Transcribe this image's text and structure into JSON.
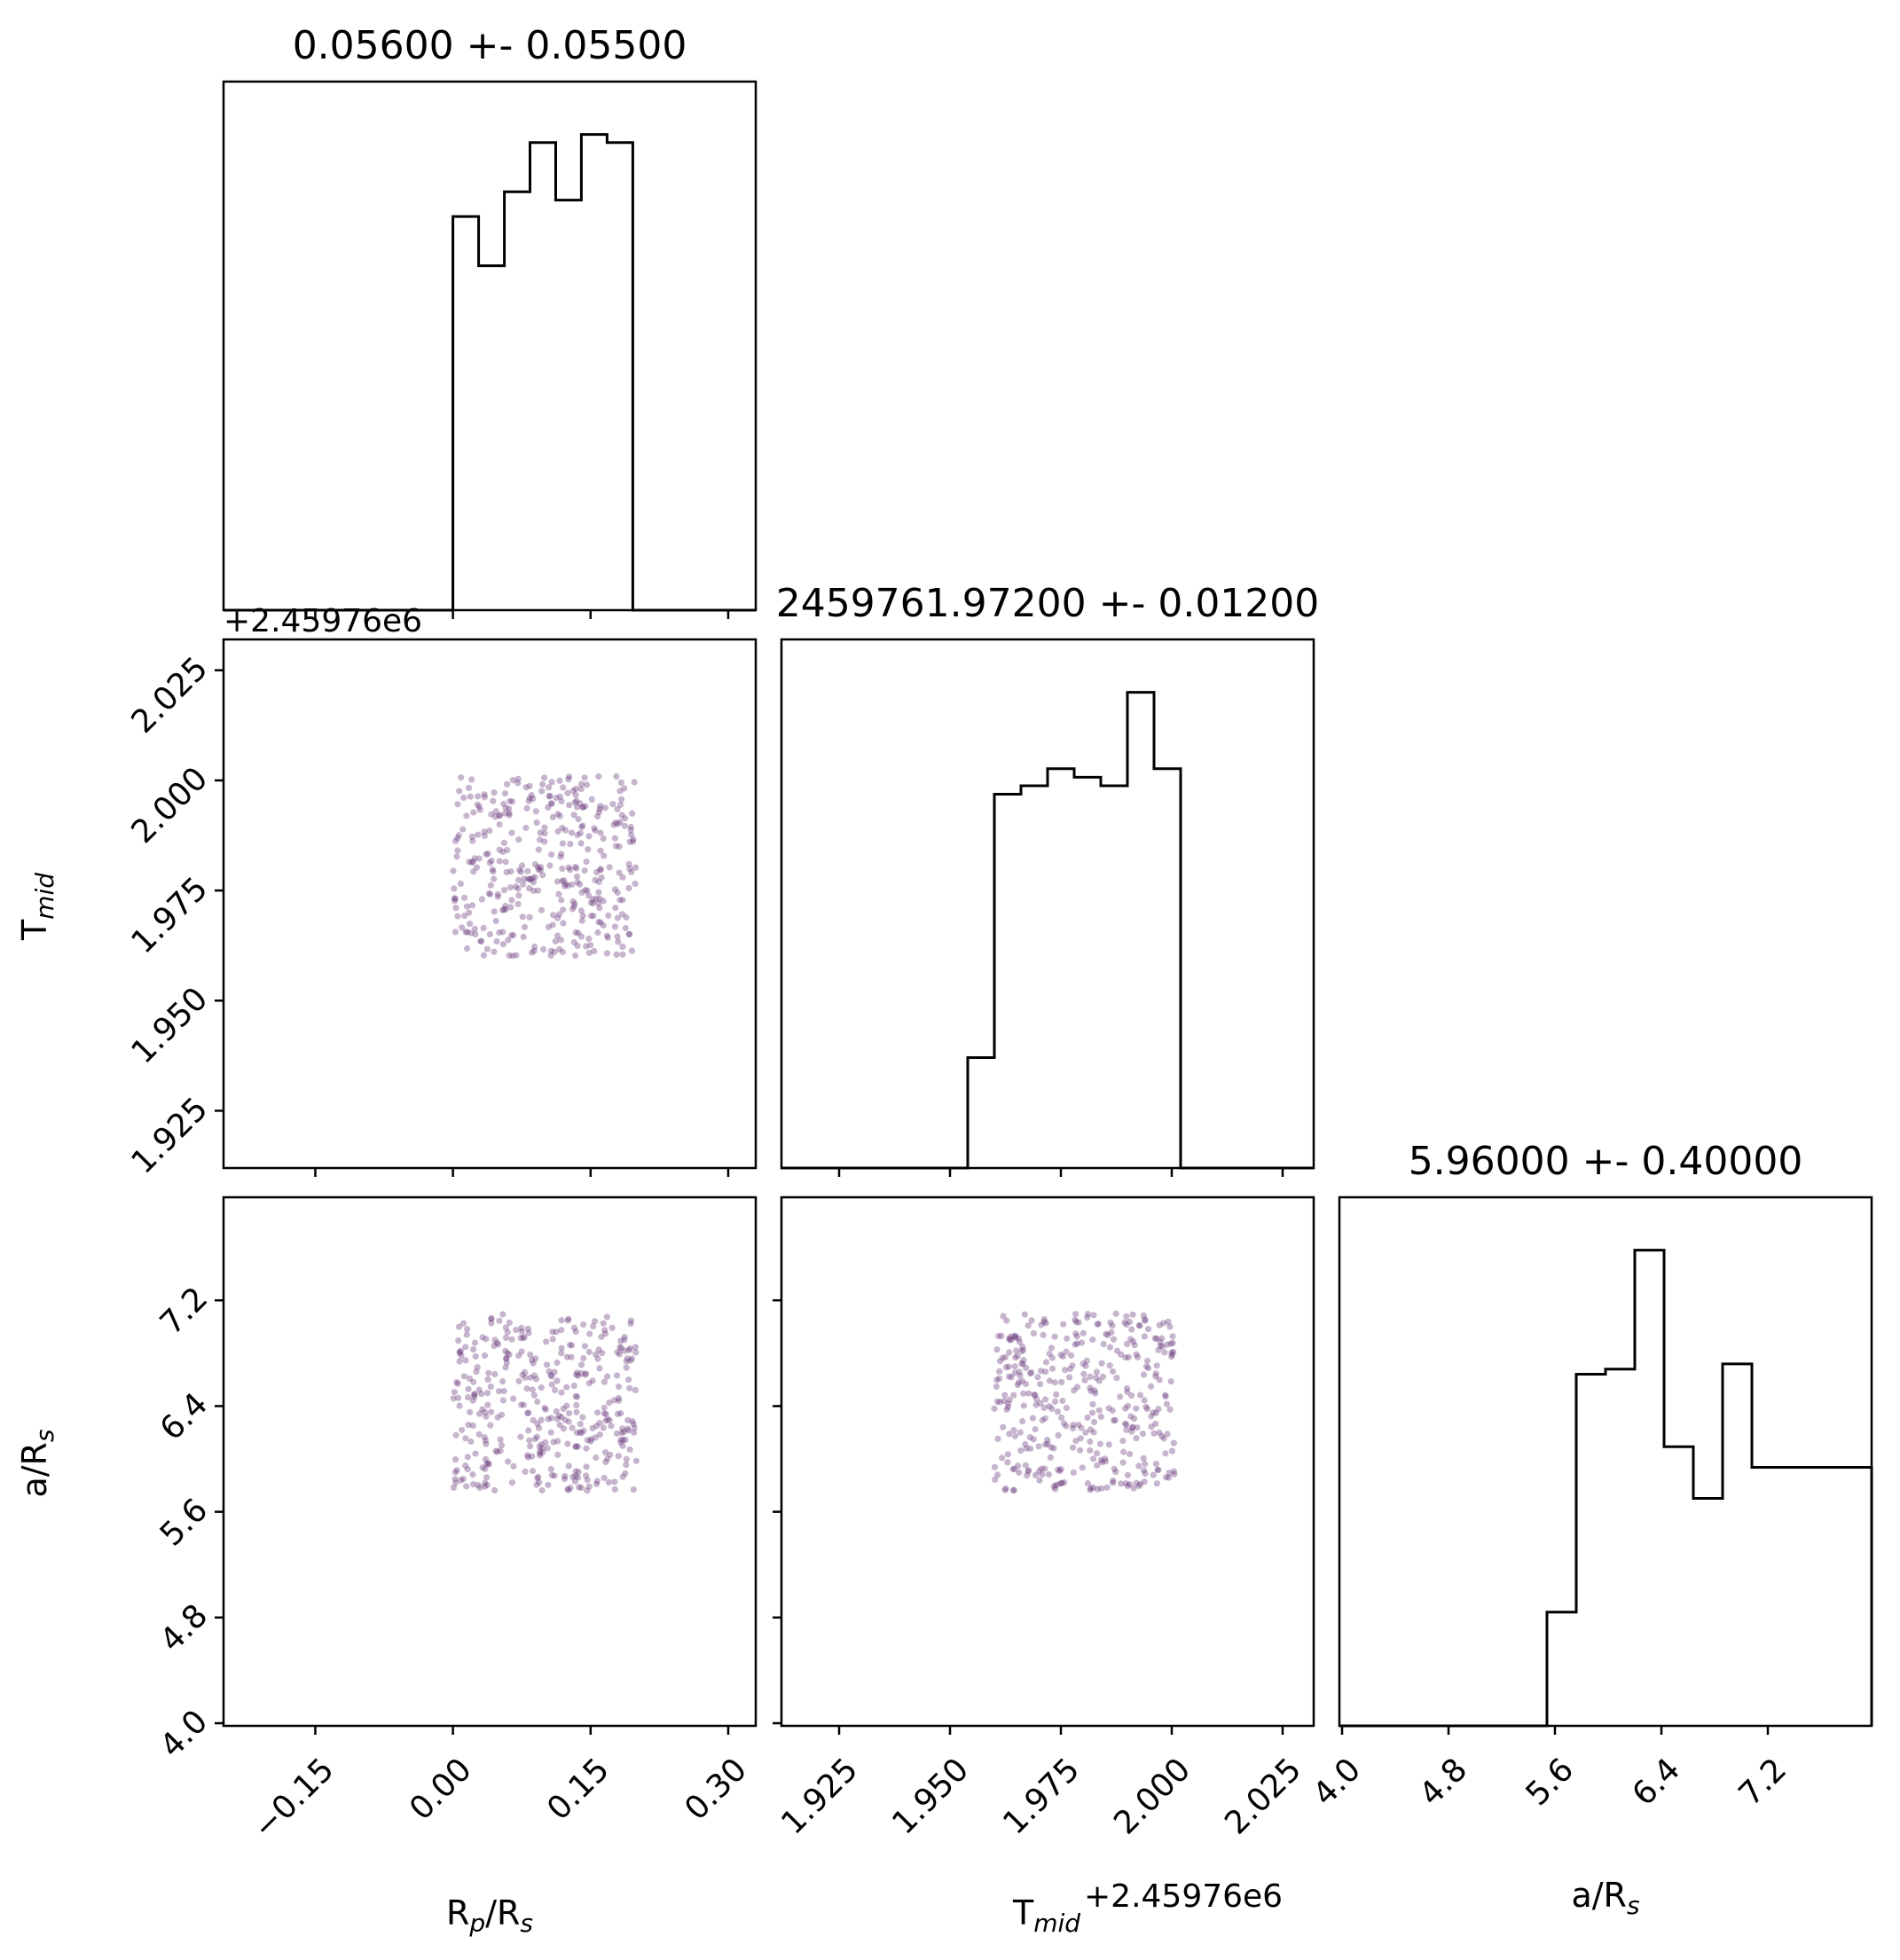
{
  "chart_data": {
    "type": "corner",
    "parameters": [
      {
        "key": "rprs",
        "label_main": "R",
        "label_sub": "p",
        "label_tail": "/R",
        "label_sub2": "s",
        "title": "0.05600 +- 0.05500",
        "range": [
          -0.25,
          0.33
        ],
        "ticks": [
          -0.15,
          0.0,
          0.15,
          0.3
        ],
        "tick_labels": [
          "−0.15",
          "0.00",
          "0.15",
          "0.30"
        ]
      },
      {
        "key": "tmid",
        "label_main": "T",
        "label_sub": "mid",
        "label_tail": "",
        "label_sub2": "",
        "title": "2459761.97200 +- 0.01200",
        "range": [
          1.912,
          2.032
        ],
        "ticks": [
          1.925,
          1.95,
          1.975,
          2.0,
          2.025
        ],
        "tick_labels": [
          "1.925",
          "1.950",
          "1.975",
          "2.000",
          "2.025"
        ],
        "offset": "+2.45976e6"
      },
      {
        "key": "ars",
        "label_main": "a/R",
        "label_sub": "s",
        "label_tail": "",
        "label_sub2": "",
        "title": "5.96000 +- 0.40000",
        "range": [
          3.98,
          7.98
        ],
        "ticks": [
          4.0,
          4.8,
          5.6,
          6.4,
          7.2
        ],
        "tick_labels": [
          "4.0",
          "4.8",
          "5.6",
          "6.4",
          "7.2"
        ]
      }
    ],
    "histograms": {
      "rprs": {
        "edges": [
          -0.25,
          0.0,
          0.028,
          0.056,
          0.084,
          0.112,
          0.14,
          0.168,
          0.196,
          0.33
        ],
        "counts": [
          0,
          48,
          42,
          51,
          57,
          50,
          58,
          57,
          0
        ]
      },
      "tmid": {
        "edges": [
          1.912,
          1.954,
          1.96,
          1.966,
          1.972,
          1.978,
          1.984,
          1.99,
          1.996,
          2.002,
          2.032
        ],
        "counts": [
          0,
          13,
          44,
          45,
          47,
          46,
          45,
          56,
          47,
          0
        ]
      },
      "ars": {
        "edges": [
          3.98,
          5.54,
          5.76,
          5.98,
          6.2,
          6.42,
          6.64,
          6.86,
          7.08,
          7.98
        ],
        "counts": [
          0,
          11,
          34,
          34.5,
          46,
          27,
          22,
          35,
          25,
          0
        ]
      }
    },
    "scatter_samples": 380,
    "scatter_bounds": {
      "rprs": [
        0.0,
        0.2
      ],
      "tmid": [
        1.96,
        2.001
      ],
      "ars": [
        5.76,
        7.1
      ]
    },
    "grid": false,
    "colors": {
      "points": "#6b3d7e",
      "lines": "#000000"
    }
  }
}
